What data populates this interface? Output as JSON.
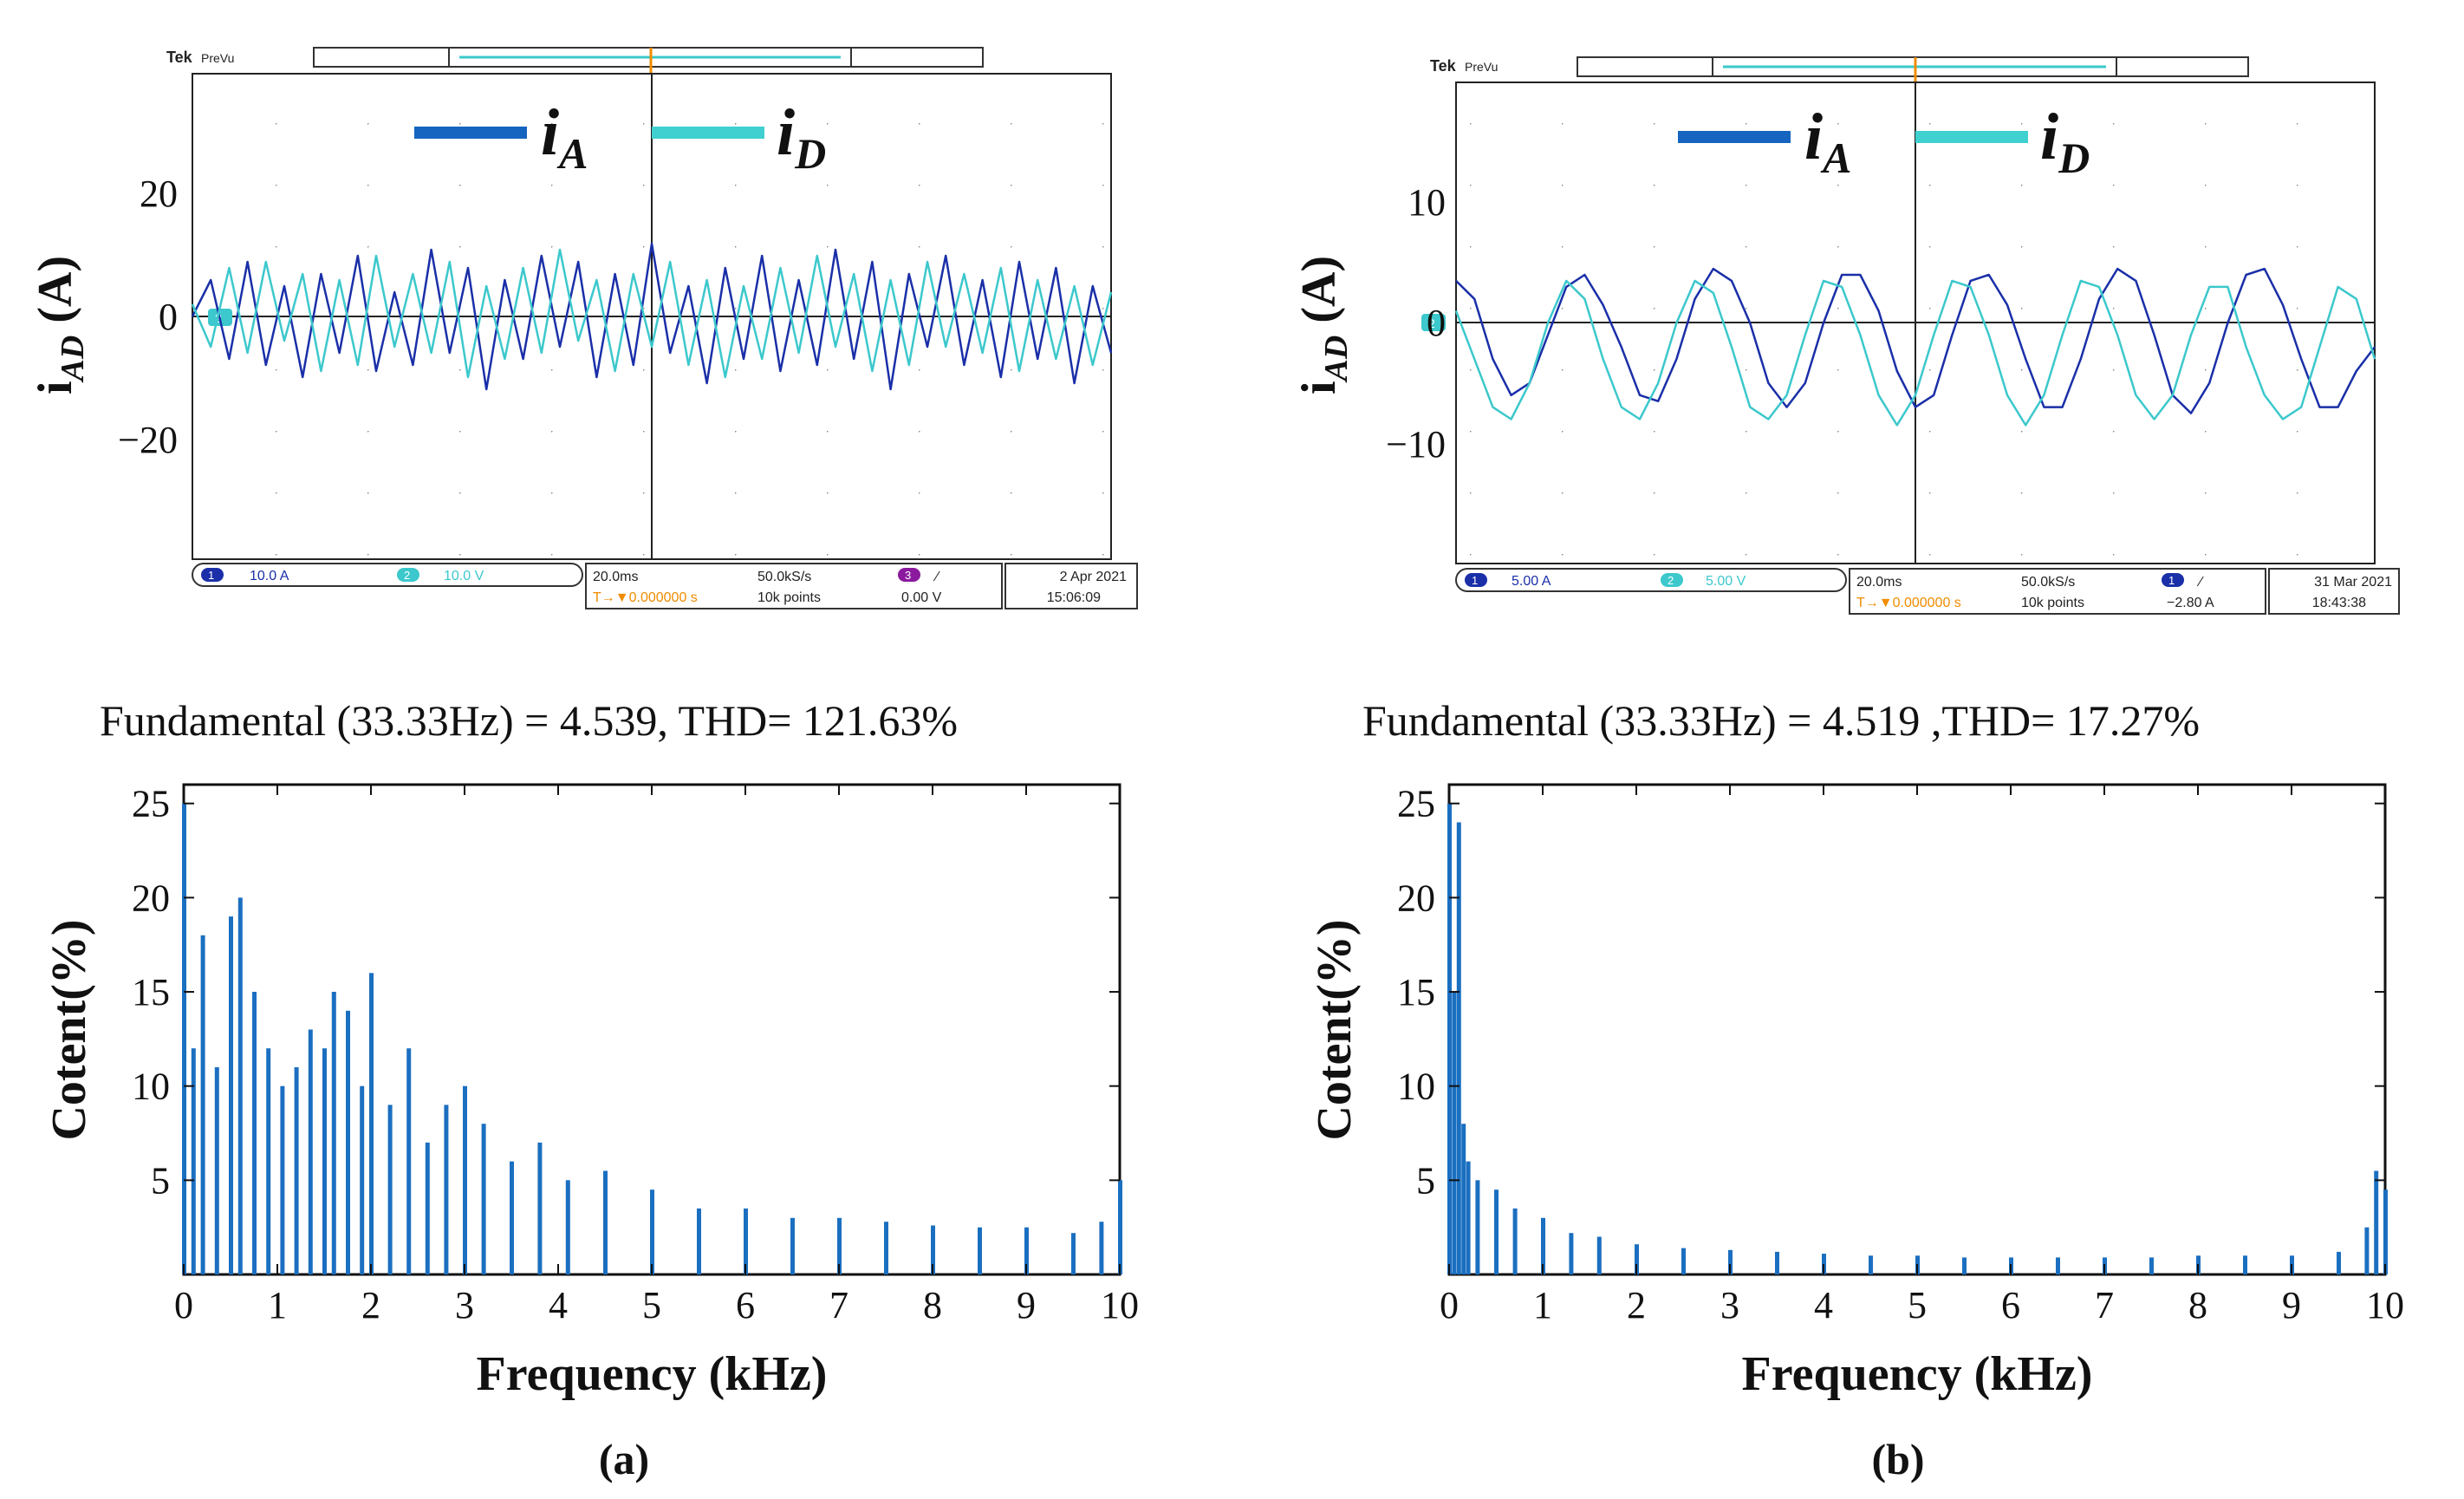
{
  "chart_data": [
    {
      "panel": "(a)",
      "type": "line",
      "title": "",
      "ylabel": "i",
      "ylabel_sub": "AD",
      "ylabel_unit": " (A)",
      "xlabel": "",
      "ylim": [
        -40,
        40
      ],
      "yticks": [
        20,
        0,
        -20
      ],
      "ytick_labels": [
        "20",
        "0",
        "−20"
      ],
      "x": [
        0,
        2,
        4,
        6,
        8,
        10,
        12,
        14,
        16,
        18,
        20,
        22,
        24,
        26,
        28,
        30,
        32,
        34,
        36,
        38,
        40,
        42,
        44,
        46,
        48,
        50,
        52,
        54,
        56,
        58,
        60,
        62,
        64,
        66,
        68,
        70,
        72,
        74,
        76,
        78,
        80,
        82,
        84,
        86,
        88,
        90,
        92,
        94,
        96,
        98,
        100
      ],
      "series": [
        {
          "name": "i_A",
          "color": "#1a2fa8",
          "values": [
            0,
            6,
            -7,
            9,
            -8,
            5,
            -10,
            7,
            -6,
            10,
            -9,
            4,
            -8,
            11,
            -6,
            8,
            -12,
            6,
            -7,
            10,
            -5,
            9,
            -10,
            7,
            -8,
            12,
            -6,
            5,
            -11,
            8,
            -7,
            10,
            -9,
            6,
            -8,
            11,
            -7,
            9,
            -12,
            7,
            -5,
            10,
            -8,
            6,
            -10,
            9,
            -7,
            8,
            -11,
            5,
            -6
          ]
        },
        {
          "name": "i_D",
          "color": "#3cc8cc",
          "values": [
            2,
            -5,
            8,
            -6,
            9,
            -4,
            7,
            -9,
            6,
            -8,
            10,
            -5,
            7,
            -6,
            9,
            -10,
            5,
            -7,
            8,
            -6,
            11,
            -4,
            6,
            -9,
            7,
            -5,
            9,
            -8,
            6,
            -10,
            5,
            -7,
            8,
            -6,
            10,
            -5,
            7,
            -9,
            6,
            -8,
            9,
            -5,
            7,
            -6,
            8,
            -9,
            6,
            -7,
            5,
            -8,
            4
          ]
        }
      ],
      "legend": [
        {
          "symbol": "i",
          "sub": "A",
          "color": "#1565c0"
        },
        {
          "symbol": "i",
          "sub": "D",
          "color": "#40d0d0"
        }
      ],
      "scope": {
        "brand": "Tek",
        "mode": "PreVu",
        "ch1_num": "1",
        "ch1_scale": "10.0 A",
        "ch2_num": "2",
        "ch2_scale": "10.0 V",
        "timebase": "20.0ms",
        "sample_rate": "50.0kS/s",
        "trigger_delay": "T→▼0.000000 s",
        "record_length": "10k points",
        "trig_ch_num": "3",
        "trig_slope": "∕",
        "trig_level": "0.00 V",
        "date": "2 Apr  2021",
        "time": "15:06:09",
        "ch2_marker": "2",
        "trig_marker": "T"
      },
      "fft": {
        "type": "bar",
        "header": "Fundamental (33.33Hz) = 4.539, THD= 121.63%",
        "xlabel": "Frequency (kHz)",
        "ylabel": "Cotent(%)",
        "xlim": [
          0,
          10
        ],
        "ylim": [
          0,
          26
        ],
        "xticks": [
          "0",
          "1",
          "2",
          "3",
          "4",
          "5",
          "6",
          "7",
          "8",
          "9",
          "10"
        ],
        "yticks": [
          "5",
          "10",
          "15",
          "20",
          "25"
        ],
        "x_khz": [
          0.0,
          0.1,
          0.2,
          0.35,
          0.5,
          0.6,
          0.75,
          0.9,
          1.05,
          1.2,
          1.35,
          1.5,
          1.6,
          1.75,
          1.9,
          2.0,
          2.2,
          2.4,
          2.6,
          2.8,
          3.0,
          3.2,
          3.5,
          3.8,
          4.1,
          4.5,
          5.0,
          5.5,
          6.0,
          6.5,
          7.0,
          7.5,
          8.0,
          8.5,
          9.0,
          9.5,
          9.8,
          10.0
        ],
        "values": [
          25,
          12,
          18,
          11,
          19,
          20,
          15,
          12,
          10,
          11,
          13,
          12,
          15,
          14,
          10,
          16,
          9,
          12,
          7,
          9,
          10,
          8,
          6,
          7,
          5,
          5.5,
          4.5,
          3.5,
          3.5,
          3,
          3,
          2.8,
          2.6,
          2.5,
          2.5,
          2.2,
          2.8,
          5
        ]
      },
      "caption": "(a)"
    },
    {
      "panel": "(b)",
      "type": "line",
      "title": "",
      "ylabel": "i",
      "ylabel_sub": "AD",
      "ylabel_unit": " (A)",
      "xlabel": "",
      "ylim": [
        -20,
        20
      ],
      "yticks": [
        10,
        0,
        -10
      ],
      "ytick_labels": [
        "10",
        "0",
        "−10"
      ],
      "x": [
        0,
        2,
        4,
        6,
        8,
        10,
        12,
        14,
        16,
        18,
        20,
        22,
        24,
        26,
        28,
        30,
        32,
        34,
        36,
        38,
        40,
        42,
        44,
        46,
        48,
        50,
        52,
        54,
        56,
        58,
        60,
        62,
        64,
        66,
        68,
        70,
        72,
        74,
        76,
        78,
        80,
        82,
        84,
        86,
        88,
        90,
        92,
        94,
        96,
        98,
        100
      ],
      "series": [
        {
          "name": "i_A",
          "color": "#1a2fa8",
          "values": [
            3.5,
            2,
            -3,
            -6,
            -5,
            -1,
            3,
            4,
            1.5,
            -2,
            -6,
            -6.5,
            -3,
            2,
            4.5,
            3.5,
            0,
            -5,
            -7,
            -5,
            0,
            4,
            4,
            1,
            -4,
            -7,
            -6,
            -1,
            3.5,
            4,
            1.5,
            -3,
            -7,
            -7,
            -3,
            2,
            4.5,
            3.5,
            -1,
            -6,
            -7.5,
            -5,
            0,
            4,
            4.5,
            1.5,
            -3,
            -7,
            -7,
            -4,
            -2
          ]
        },
        {
          "name": "i_D",
          "color": "#3cc8cc",
          "values": [
            1,
            -3,
            -7,
            -8,
            -5,
            0,
            3.5,
            2,
            -3,
            -7,
            -8,
            -5,
            0,
            3.5,
            2.5,
            -2,
            -7,
            -8,
            -6,
            -1,
            3.5,
            3,
            -1,
            -6,
            -8.5,
            -6,
            -1,
            3.5,
            3,
            -1,
            -6,
            -8.5,
            -6,
            -1,
            3.5,
            3,
            -1,
            -6,
            -8,
            -6,
            -1,
            3,
            3,
            -2,
            -6,
            -8,
            -7,
            -2,
            3,
            2,
            -3
          ]
        }
      ],
      "legend": [
        {
          "symbol": "i",
          "sub": "A",
          "color": "#1565c0"
        },
        {
          "symbol": "i",
          "sub": "D",
          "color": "#40d0d0"
        }
      ],
      "scope": {
        "brand": "Tek",
        "mode": "PreVu",
        "ch1_num": "1",
        "ch1_scale": "5.00 A",
        "ch2_num": "2",
        "ch2_scale": "5.00 V",
        "timebase": "20.0ms",
        "sample_rate": "50.0kS/s",
        "trigger_delay": "T→▼0.000000 s",
        "record_length": "10k points",
        "trig_ch_num": "1",
        "trig_slope": "∕",
        "trig_level": "−2.80 A",
        "date": "31 Mar  2021",
        "time": "18:43:38",
        "ch2_marker": "2",
        "trig_marker": "T"
      },
      "fft": {
        "type": "bar",
        "header": "Fundamental (33.33Hz) = 4.519 ,THD= 17.27%",
        "xlabel": "Frequency (kHz)",
        "ylabel": "Cotent(%)",
        "xlim": [
          0,
          10
        ],
        "ylim": [
          0,
          26
        ],
        "xticks": [
          "0",
          "1",
          "2",
          "3",
          "4",
          "5",
          "6",
          "7",
          "8",
          "9",
          "10"
        ],
        "yticks": [
          "5",
          "10",
          "15",
          "20",
          "25"
        ],
        "x_khz": [
          0.0,
          0.05,
          0.1,
          0.15,
          0.2,
          0.3,
          0.5,
          0.7,
          1.0,
          1.3,
          1.6,
          2.0,
          2.5,
          3.0,
          3.5,
          4.0,
          4.5,
          5.0,
          5.5,
          6.0,
          6.5,
          7.0,
          7.5,
          8.0,
          8.5,
          9.0,
          9.5,
          9.8,
          9.9,
          10.0
        ],
        "values": [
          25,
          15,
          24,
          8,
          6,
          5,
          4.5,
          3.5,
          3,
          2.2,
          2,
          1.6,
          1.4,
          1.3,
          1.2,
          1.1,
          1,
          1,
          0.9,
          0.9,
          0.9,
          0.9,
          0.9,
          1,
          1,
          1,
          1.2,
          2.5,
          5.5,
          4.5
        ]
      },
      "caption": "(b)"
    }
  ]
}
